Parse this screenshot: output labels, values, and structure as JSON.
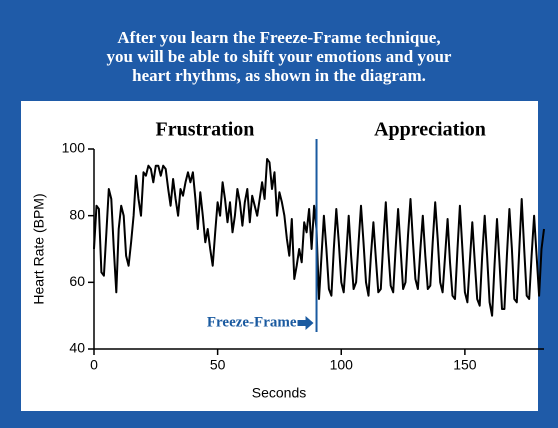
{
  "chart_data": {
    "type": "line",
    "title": [
      "After you learn the Freeze-Frame technique,",
      "you will be able to shift your emotions and your",
      "heart rhythms, as shown in the diagram."
    ],
    "x_label": "Seconds",
    "y_label": "Heart Rate (BPM)",
    "regions": [
      "Frustration",
      "Appreciation"
    ],
    "marker": {
      "label": "Freeze-Frame",
      "x": 90,
      "color": "#1a5aa0"
    },
    "xlim": [
      0,
      182
    ],
    "ylim": [
      40,
      100
    ],
    "xticks": [
      0,
      50,
      100,
      150
    ],
    "yticks": [
      40,
      60,
      80,
      100
    ],
    "x": [
      0,
      1,
      2,
      3,
      4,
      5,
      6,
      7,
      8,
      9,
      10,
      11,
      12,
      13,
      14,
      15,
      16,
      17,
      18,
      19,
      20,
      21,
      22,
      23,
      24,
      25,
      26,
      27,
      28,
      29,
      30,
      31,
      32,
      33,
      34,
      35,
      36,
      37,
      38,
      39,
      40,
      41,
      42,
      43,
      44,
      45,
      46,
      47,
      48,
      49,
      50,
      51,
      52,
      53,
      54,
      55,
      56,
      57,
      58,
      59,
      60,
      61,
      62,
      63,
      64,
      65,
      66,
      67,
      68,
      69,
      70,
      71,
      72,
      73,
      74,
      75,
      76,
      77,
      78,
      79,
      80,
      81,
      82,
      83,
      84,
      85,
      86,
      87,
      88,
      89,
      90,
      91,
      92,
      93,
      94,
      95,
      96,
      97,
      98,
      99,
      100,
      101,
      102,
      103,
      104,
      105,
      106,
      107,
      108,
      109,
      110,
      111,
      112,
      113,
      114,
      115,
      116,
      117,
      118,
      119,
      120,
      121,
      122,
      123,
      124,
      125,
      126,
      127,
      128,
      129,
      130,
      131,
      132,
      133,
      134,
      135,
      136,
      137,
      138,
      139,
      140,
      141,
      142,
      143,
      144,
      145,
      146,
      147,
      148,
      149,
      150,
      151,
      152,
      153,
      154,
      155,
      156,
      157,
      158,
      159,
      160,
      161,
      162,
      163,
      164,
      165,
      166,
      167,
      168,
      169,
      170,
      171,
      172,
      173,
      174,
      175,
      176,
      177,
      178,
      179,
      180,
      181,
      182
    ],
    "series": [
      {
        "color": "#000000",
        "values": [
          70,
          83,
          82,
          63,
          62,
          75,
          88,
          85,
          70,
          57,
          76,
          83,
          80,
          68,
          65,
          72,
          80,
          92,
          85,
          80,
          93,
          92,
          95,
          94,
          90,
          95,
          95,
          92,
          95,
          94,
          88,
          83,
          91,
          85,
          80,
          88,
          86,
          90,
          93,
          90,
          93,
          85,
          76,
          87,
          80,
          72,
          76,
          70,
          65,
          75,
          84,
          80,
          90,
          85,
          78,
          84,
          75,
          80,
          88,
          84,
          77,
          84,
          88,
          78,
          86,
          83,
          80,
          85,
          90,
          85,
          97,
          96,
          88,
          93,
          80,
          87,
          84,
          80,
          73,
          68,
          79,
          61,
          65,
          70,
          66,
          78,
          75,
          82,
          70,
          83,
          76,
          55,
          68,
          80,
          70,
          58,
          56,
          70,
          82,
          72,
          60,
          57,
          68,
          80,
          68,
          58,
          60,
          72,
          83,
          72,
          60,
          56,
          68,
          78,
          67,
          57,
          58,
          72,
          84,
          70,
          59,
          57,
          70,
          82,
          70,
          58,
          60,
          74,
          85,
          72,
          61,
          58,
          70,
          80,
          68,
          58,
          59,
          72,
          84,
          73,
          60,
          57,
          68,
          79,
          66,
          56,
          55,
          70,
          83,
          70,
          57,
          54,
          66,
          78,
          66,
          55,
          53,
          68,
          80,
          68,
          54,
          50,
          65,
          79,
          66,
          52,
          52,
          68,
          82,
          70,
          55,
          54,
          70,
          85,
          70,
          56,
          55,
          68,
          80,
          68,
          56,
          70,
          76
        ]
      }
    ]
  }
}
